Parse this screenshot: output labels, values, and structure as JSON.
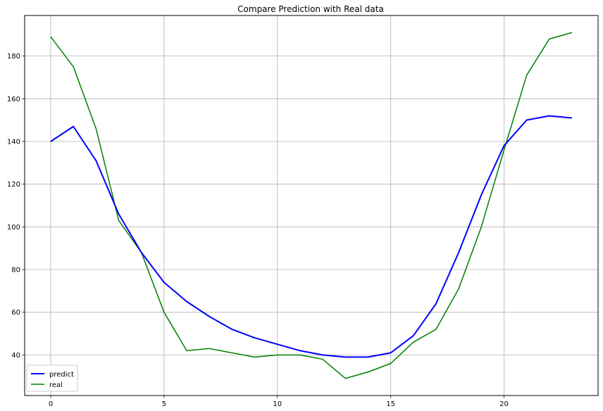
{
  "chart_data": {
    "type": "line",
    "title": "Compare Prediction with Real data",
    "xlabel": "",
    "ylabel": "",
    "xlim": [
      -1.15,
      24.15
    ],
    "ylim": [
      21,
      199
    ],
    "x_ticks": [
      0,
      5,
      10,
      15,
      20
    ],
    "y_ticks": [
      40,
      60,
      80,
      100,
      120,
      140,
      160,
      180
    ],
    "grid": true,
    "legend_position": "lower-left",
    "x": [
      0,
      1,
      2,
      3,
      4,
      5,
      6,
      7,
      8,
      9,
      10,
      11,
      12,
      13,
      14,
      15,
      16,
      17,
      18,
      19,
      20,
      21,
      22,
      23
    ],
    "series": [
      {
        "name": "predict",
        "color": "#0000ff",
        "values": [
          140,
          147,
          131,
          106,
          88,
          74,
          65,
          58,
          52,
          48,
          45,
          42,
          40,
          39,
          39,
          41,
          49,
          64,
          88,
          115,
          138,
          150,
          152,
          151
        ]
      },
      {
        "name": "real",
        "color": "#008000",
        "values": [
          189,
          175,
          146,
          103,
          88,
          60,
          42,
          43,
          41,
          39,
          40,
          40,
          38,
          29,
          32,
          36,
          46,
          52,
          71,
          100,
          136,
          171,
          188,
          191
        ]
      }
    ]
  }
}
